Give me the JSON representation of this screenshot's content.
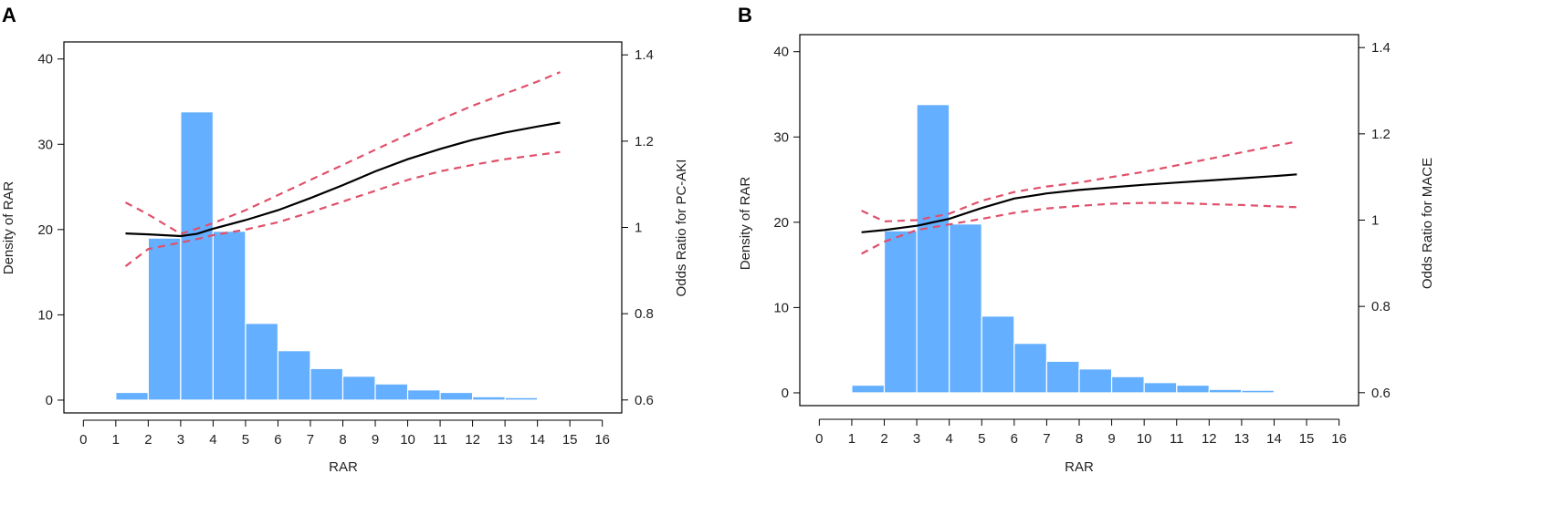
{
  "colors": {
    "bar_fill": "#64AFFF",
    "bar_stroke": "#ffffff",
    "or_line": "#000000",
    "ci_line": "#E0506A",
    "axis": "#000000"
  },
  "chart_data": [
    {
      "panel": "A",
      "type": "bar",
      "xlabel": "RAR",
      "ylabel": "Density of RAR",
      "y2label": "Odds Ratio for PC-AKI",
      "xticks": [
        "0",
        "1",
        "2",
        "3",
        "4",
        "5",
        "6",
        "7",
        "8",
        "9",
        "10",
        "11",
        "12",
        "13",
        "14",
        "15",
        "16"
      ],
      "yticks": [
        "0",
        "10",
        "20",
        "30",
        "40"
      ],
      "y2ticks": [
        "0.6",
        "0.8",
        "1",
        "1.2",
        "1.4"
      ],
      "xlim": [
        -0.6,
        16.6
      ],
      "ylim": [
        -1.5,
        42
      ],
      "y2lim": [
        0.57,
        1.43
      ],
      "histogram": {
        "bin_edges": [
          1,
          2,
          3,
          4,
          5,
          6,
          7,
          8,
          9,
          10,
          11,
          12,
          13,
          14,
          15
        ],
        "values": [
          0.9,
          19.0,
          33.8,
          19.8,
          9.0,
          5.8,
          3.7,
          2.8,
          1.9,
          1.2,
          0.9,
          0.4,
          0.3,
          0.1
        ]
      },
      "odds_ratio": {
        "x": [
          1.3,
          2,
          3,
          3.5,
          4,
          5,
          6,
          7,
          8,
          9,
          10,
          11,
          12,
          13,
          14,
          14.7
        ],
        "estimate": [
          0.986,
          0.984,
          0.98,
          0.985,
          0.997,
          1.017,
          1.04,
          1.068,
          1.098,
          1.13,
          1.158,
          1.182,
          1.203,
          1.22,
          1.234,
          1.243
        ],
        "lower": [
          0.91,
          0.95,
          0.965,
          0.973,
          0.982,
          0.995,
          1.012,
          1.035,
          1.06,
          1.085,
          1.11,
          1.13,
          1.145,
          1.158,
          1.168,
          1.175
        ],
        "upper": [
          1.058,
          1.03,
          0.985,
          0.997,
          1.01,
          1.04,
          1.075,
          1.11,
          1.145,
          1.18,
          1.215,
          1.25,
          1.282,
          1.31,
          1.338,
          1.36
        ]
      }
    },
    {
      "panel": "B",
      "type": "bar",
      "xlabel": "RAR",
      "ylabel": "Density of RAR",
      "y2label": "Odds Ratio for MACE",
      "xticks": [
        "0",
        "1",
        "2",
        "3",
        "4",
        "5",
        "6",
        "7",
        "8",
        "9",
        "10",
        "11",
        "12",
        "13",
        "14",
        "15",
        "16"
      ],
      "yticks": [
        "0",
        "10",
        "20",
        "30",
        "40"
      ],
      "y2ticks": [
        "0.6",
        "0.8",
        "1",
        "1.2",
        "1.4"
      ],
      "xlim": [
        -0.6,
        16.6
      ],
      "ylim": [
        -1.5,
        42
      ],
      "y2lim": [
        0.57,
        1.43
      ],
      "histogram": {
        "bin_edges": [
          1,
          2,
          3,
          4,
          5,
          6,
          7,
          8,
          9,
          10,
          11,
          12,
          13,
          14,
          15
        ],
        "values": [
          0.9,
          19.0,
          33.8,
          19.8,
          9.0,
          5.8,
          3.7,
          2.8,
          1.9,
          1.2,
          0.9,
          0.4,
          0.3,
          0.1
        ]
      },
      "odds_ratio": {
        "x": [
          1.3,
          2,
          3,
          4,
          5,
          6,
          7,
          8,
          9,
          10,
          11,
          12,
          13,
          14,
          14.7
        ],
        "estimate": [
          0.972,
          0.977,
          0.987,
          1.003,
          1.028,
          1.05,
          1.062,
          1.07,
          1.076,
          1.082,
          1.087,
          1.092,
          1.097,
          1.102,
          1.106
        ],
        "lower": [
          0.922,
          0.95,
          0.977,
          0.99,
          1.003,
          1.017,
          1.027,
          1.033,
          1.038,
          1.04,
          1.04,
          1.037,
          1.035,
          1.032,
          1.03
        ],
        "upper": [
          1.022,
          0.997,
          1.0,
          1.015,
          1.045,
          1.065,
          1.078,
          1.087,
          1.1,
          1.112,
          1.127,
          1.142,
          1.157,
          1.172,
          1.182
        ]
      }
    }
  ]
}
